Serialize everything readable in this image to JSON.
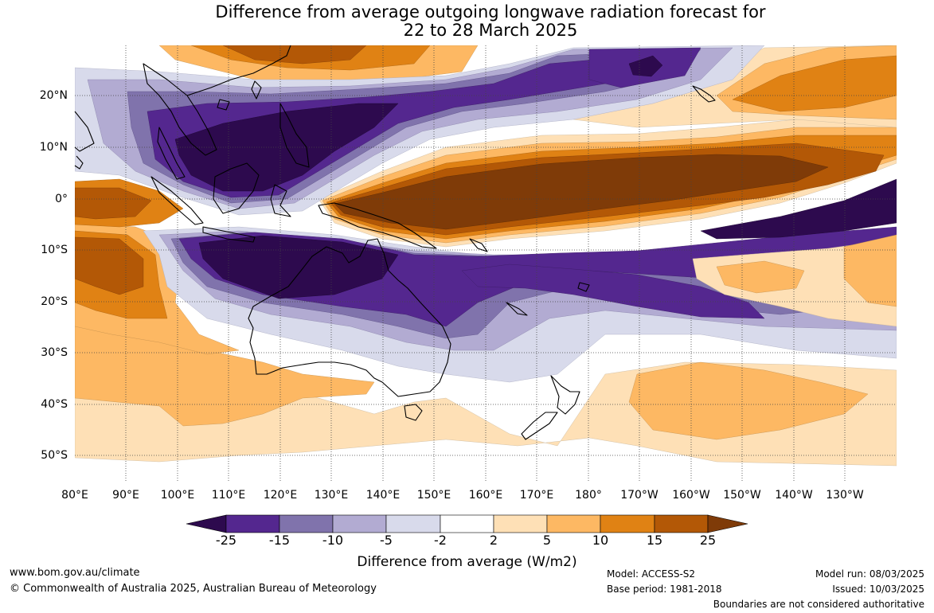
{
  "title_line1": "Difference from average outgoing longwave radiation forecast for",
  "title_line2": "22 to 28 March 2025",
  "latitude_labels": [
    "20°N",
    "10°N",
    "0°",
    "10°S",
    "20°S",
    "30°S",
    "40°S",
    "50°S"
  ],
  "latitude_values": [
    20,
    10,
    0,
    -10,
    -20,
    -30,
    -40,
    -50
  ],
  "longitude_labels": [
    "80°E",
    "90°E",
    "100°E",
    "110°E",
    "120°E",
    "130°E",
    "140°E",
    "150°E",
    "160°E",
    "170°E",
    "180°",
    "170°W",
    "160°W",
    "150°W",
    "140°W",
    "130°W"
  ],
  "longitude_values": [
    80,
    90,
    100,
    110,
    120,
    130,
    140,
    150,
    160,
    170,
    180,
    190,
    200,
    210,
    220,
    230
  ],
  "map_extent": {
    "lon_min": 80,
    "lon_max": 240,
    "lat_min": -55,
    "lat_max": 30
  },
  "legend": {
    "title": "Difference from average (W/m2)",
    "tick_labels": [
      "-25",
      "-15",
      "-10",
      "-5",
      "-2",
      "2",
      "5",
      "10",
      "15",
      "25"
    ],
    "bands": [
      {
        "range": "< -25",
        "color": "#2d0a4e"
      },
      {
        "range": "-25 to -15",
        "color": "#54278f"
      },
      {
        "range": "-15 to -10",
        "color": "#8073ac"
      },
      {
        "range": "-10 to -5",
        "color": "#b2abd2"
      },
      {
        "range": "-5 to -2",
        "color": "#d8daeb"
      },
      {
        "range": "-2 to 2",
        "color": "#ffffff"
      },
      {
        "range": "2 to 5",
        "color": "#fee0b6"
      },
      {
        "range": "5 to 10",
        "color": "#fdb863"
      },
      {
        "range": "10 to 15",
        "color": "#e08214"
      },
      {
        "range": "15 to 25",
        "color": "#b35806"
      },
      {
        "range": "> 25",
        "color": "#7f3b08"
      }
    ]
  },
  "footer": {
    "website": "www.bom.gov.au/climate",
    "copyright": "© Commonwealth of Australia 2025, Australian Bureau of Meteorology",
    "model": "Model: ACCESS-S2",
    "base_period": "Base period: 1981-2018",
    "model_run": "Model run: 08/03/2025",
    "issued": "Issued: 10/03/2025",
    "disclaimer": "Boundaries are not considered authoritative"
  }
}
